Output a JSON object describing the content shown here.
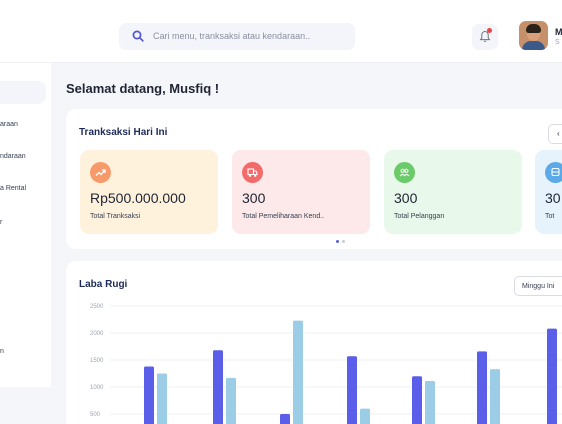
{
  "topbar": {
    "search_placeholder": "Cari menu, tranksaksi atau kendaraan..",
    "user_initial": "M",
    "user_role_initial": "S"
  },
  "sidebar": {
    "items": [
      {
        "label": "araan"
      },
      {
        "label": "ndaraan"
      },
      {
        "label": "a Rental"
      },
      {
        "label": "r"
      },
      {
        "label": "n"
      }
    ]
  },
  "main": {
    "welcome": "Selamat datang, Musfiq !",
    "transactions": {
      "title": "Tranksaksi Hari Ini",
      "more_label": "‹",
      "stats": [
        {
          "value": "Rp500.000.000",
          "label": "Total Tranksaksi",
          "icon": "trending-up-icon",
          "bg": "#fff2dd",
          "icon_bg": "#f79a6b"
        },
        {
          "value": "300",
          "label": "Total Pemeliharaan Kend..",
          "icon": "truck-icon",
          "bg": "#fde8ea",
          "icon_bg": "#f26b6b"
        },
        {
          "value": "300",
          "label": "Total Pelanggan",
          "icon": "users-icon",
          "bg": "#e8f8ea",
          "icon_bg": "#6bcb6b"
        },
        {
          "value": "30",
          "label": "Tot",
          "icon": "car-icon",
          "bg": "#e6f3fd",
          "icon_bg": "#5ba9e6"
        }
      ]
    },
    "laba_rugi": {
      "title": "Laba Rugi",
      "period": "Minggu Ini"
    }
  },
  "chart_data": {
    "type": "bar",
    "title": "Laba Rugi",
    "ylim": [
      500,
      2500
    ],
    "yticks": [
      "2500",
      "2000",
      "1500",
      "1000",
      "500"
    ],
    "grid": true,
    "categories": [
      "",
      "",
      "",
      "",
      "",
      "",
      ""
    ],
    "series": [
      {
        "values": [
          1380,
          1680,
          500,
          1570,
          1200,
          1660,
          2080
        ],
        "color": "#5b5ee8"
      },
      {
        "values": [
          1250,
          1170,
          2230,
          600,
          1110,
          1330,
          null
        ],
        "color": "#9ccde6"
      }
    ]
  }
}
